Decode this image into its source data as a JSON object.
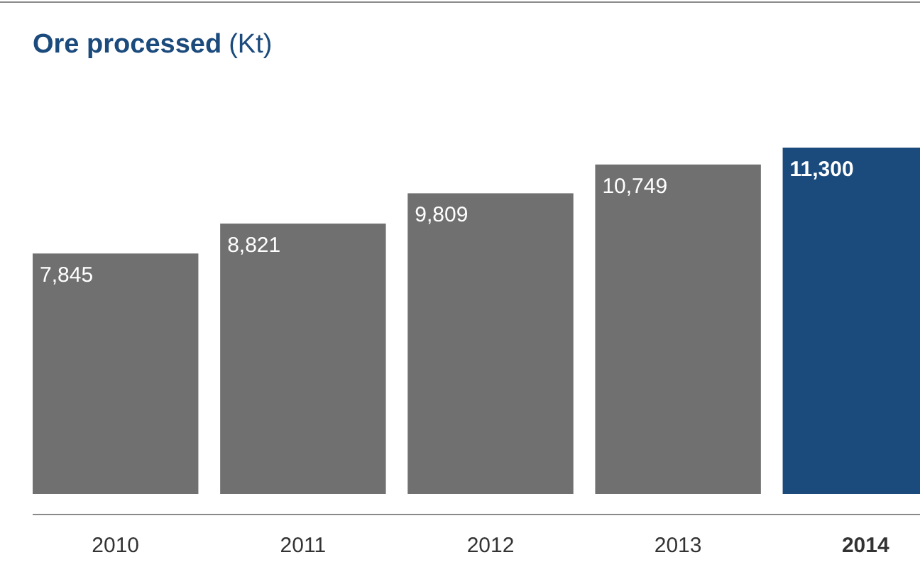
{
  "chart_data": {
    "type": "bar",
    "title": "Ore processed",
    "subtitle": "(Kt)",
    "categories": [
      "2010",
      "2011",
      "2012",
      "2013",
      "2014"
    ],
    "values": [
      7845,
      8821,
      9809,
      10749,
      11300
    ],
    "colors": [
      "#707070",
      "#707070",
      "#707070",
      "#707070",
      "#1b4a7c"
    ],
    "value_labels": [
      "7,845",
      "8,821",
      "9,809",
      "10,749",
      "11,300"
    ]
  }
}
